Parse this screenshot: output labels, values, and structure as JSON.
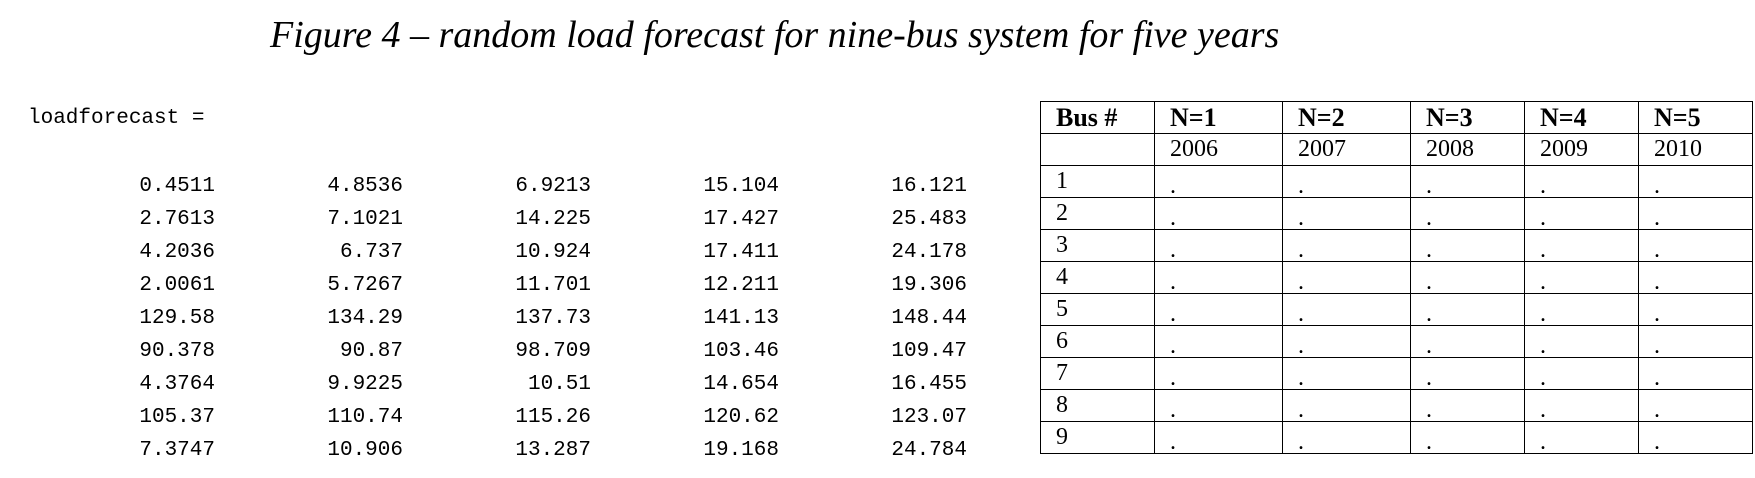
{
  "caption": "Figure 4 – random load forecast for nine-bus system for five years",
  "matlab_output": {
    "variable_label": "loadforecast =",
    "rows": [
      [
        "0.4511",
        "4.8536",
        "6.9213",
        "15.104",
        "16.121"
      ],
      [
        "2.7613",
        "7.1021",
        "14.225",
        "17.427",
        "25.483"
      ],
      [
        "4.2036",
        "6.737",
        "10.924",
        "17.411",
        "24.178"
      ],
      [
        "2.0061",
        "5.7267",
        "11.701",
        "12.211",
        "19.306"
      ],
      [
        "129.58",
        "134.29",
        "137.73",
        "141.13",
        "148.44"
      ],
      [
        "90.378",
        "90.87",
        "98.709",
        "103.46",
        "109.47"
      ],
      [
        "4.3764",
        "9.9225",
        "10.51",
        "14.654",
        "16.455"
      ],
      [
        "105.37",
        "110.74",
        "115.26",
        "120.62",
        "123.07"
      ],
      [
        "7.3747",
        "10.906",
        "13.287",
        "19.168",
        "24.784"
      ]
    ]
  },
  "bus_table": {
    "header_bus": "Bus #",
    "header_n": [
      "N=1",
      "N=2",
      "N=3",
      "N=4",
      "N=5"
    ],
    "years": [
      "2006",
      "2007",
      "2008",
      "2009",
      "2010"
    ],
    "buses": [
      "1",
      "2",
      "3",
      "4",
      "5",
      "6",
      "7",
      "8",
      "9"
    ],
    "placeholder": "."
  }
}
